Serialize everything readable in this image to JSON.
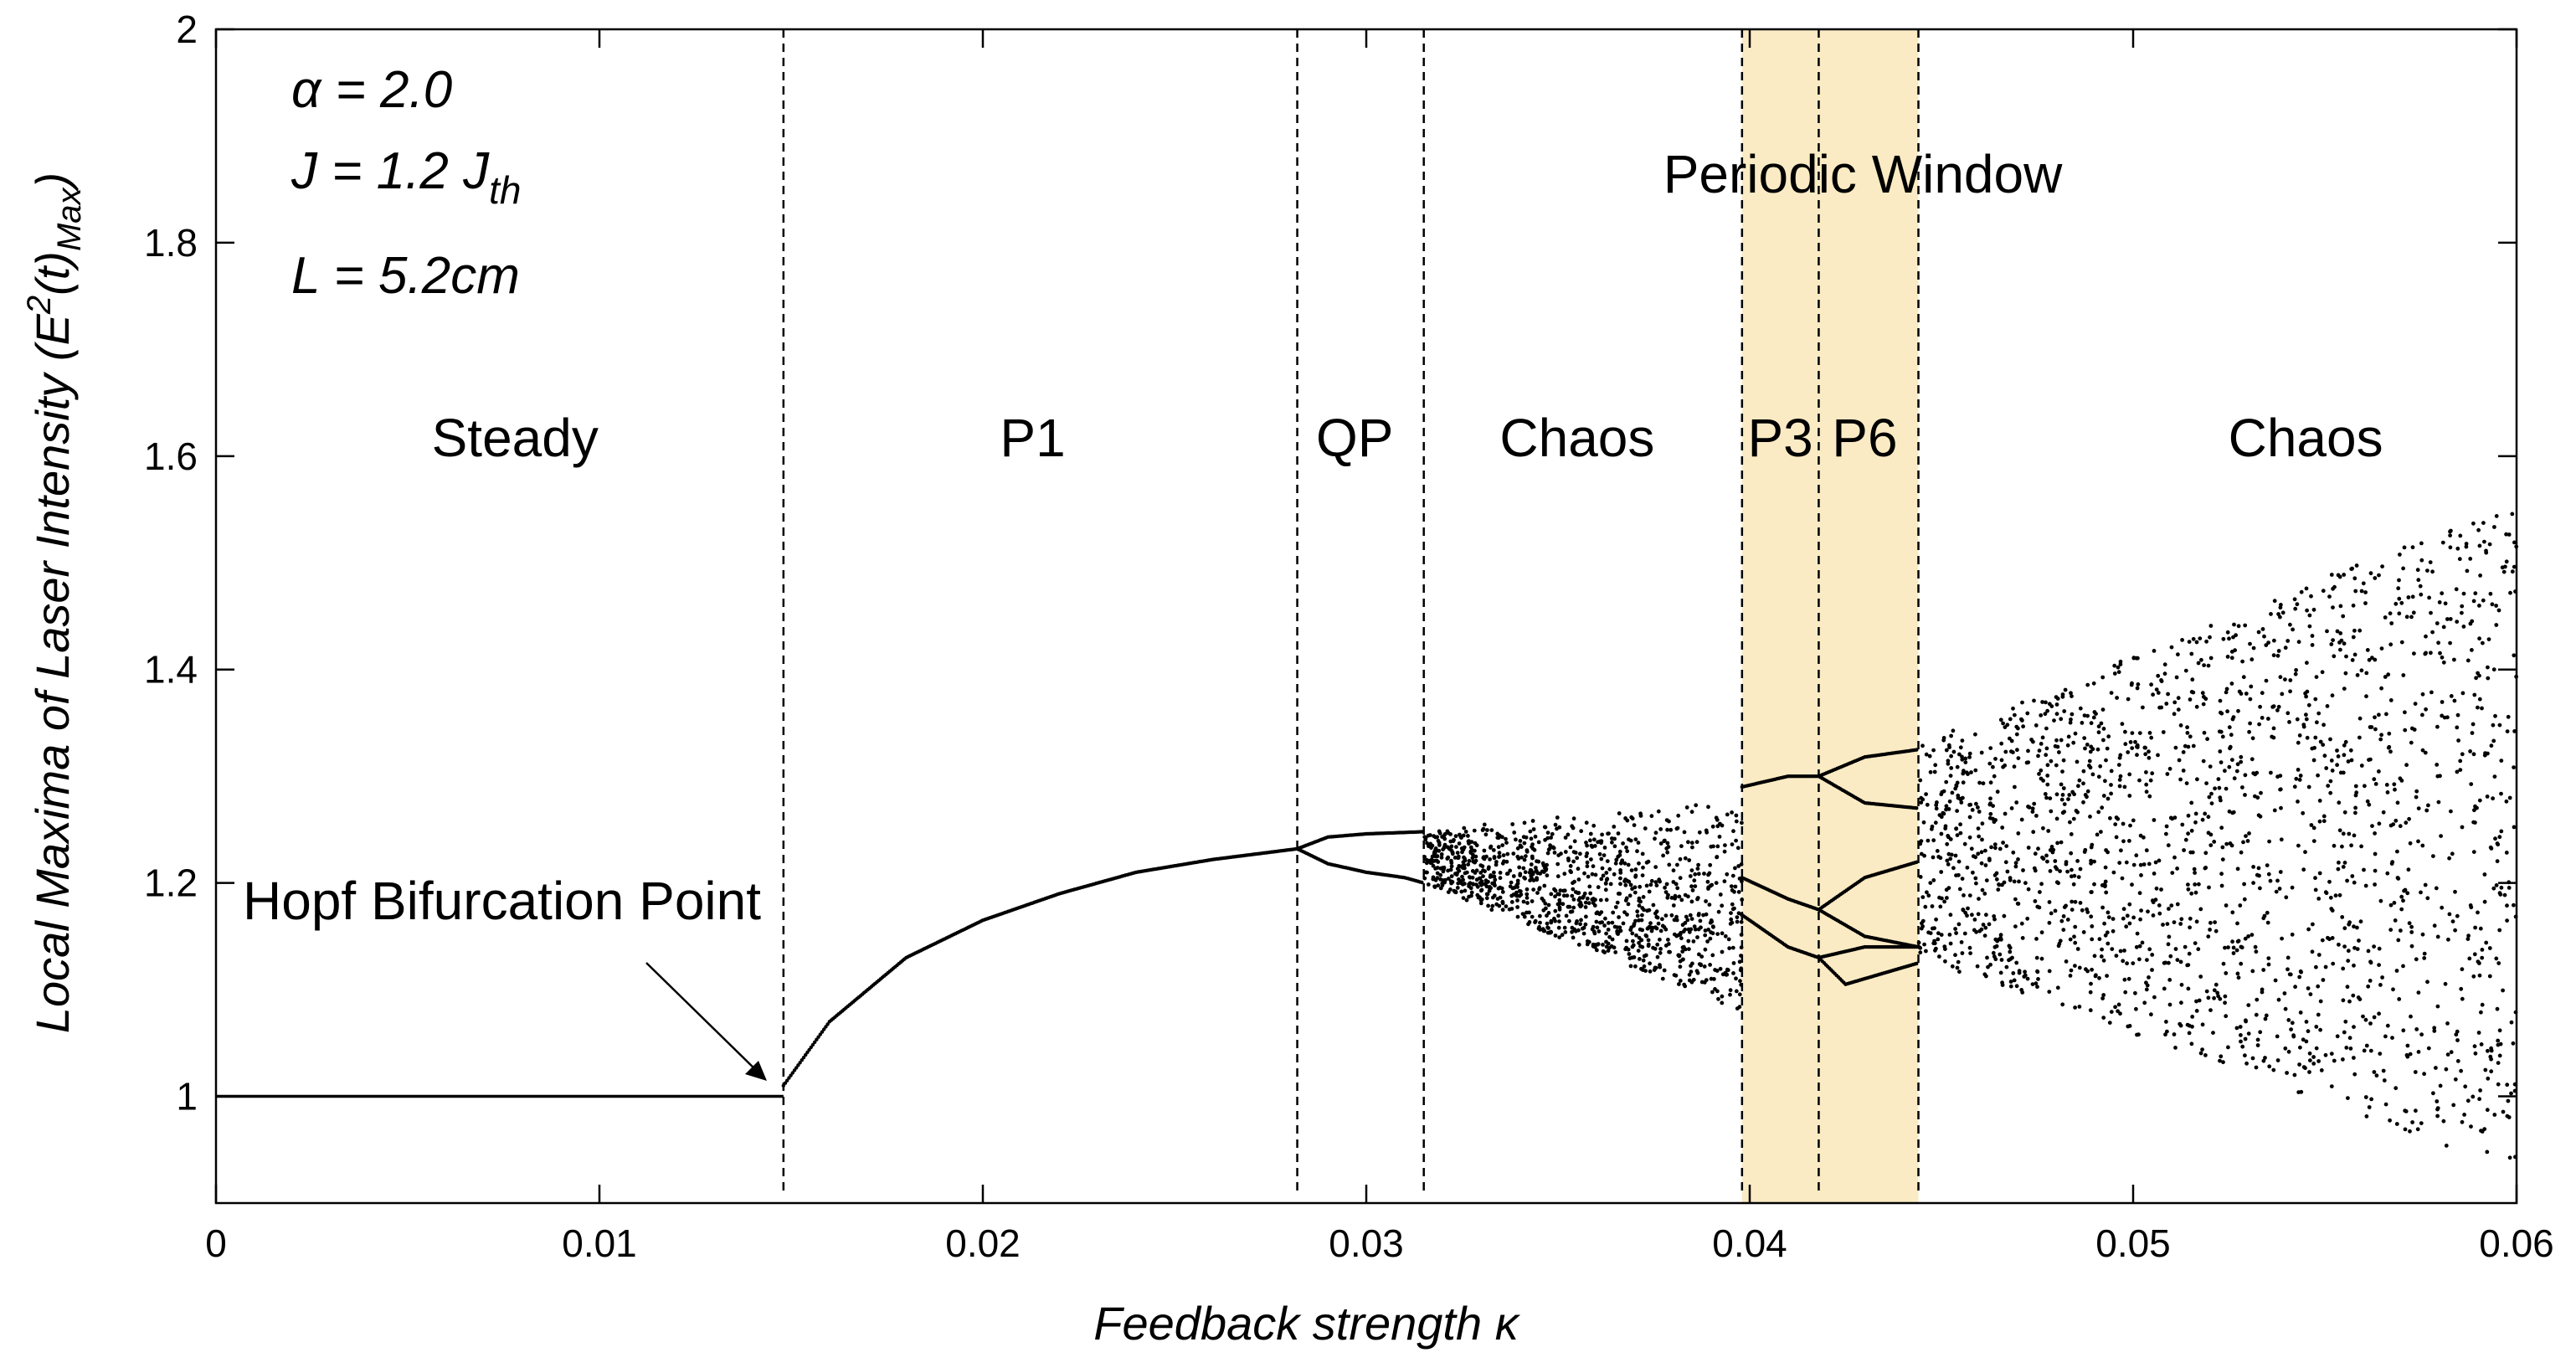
{
  "chart_data": {
    "type": "scatter",
    "subtype": "bifurcation-diagram",
    "xlabel": "Feedback strength κ",
    "ylabel": "Local Maxima of Laser Intensity (E²(t)Max)",
    "ylabel_parts": {
      "main": "Local Maxima of Laser Intensity (E",
      "sup": "2",
      "mid": "(t)",
      "sub": "Max",
      "end": ")"
    },
    "xlim": [
      0,
      0.06
    ],
    "ylim": [
      0.9,
      2.0
    ],
    "xticks": [
      0,
      0.01,
      0.02,
      0.03,
      0.04,
      0.05,
      0.06
    ],
    "xtick_labels": [
      "0",
      "0.01",
      "0.02",
      "0.03",
      "0.04",
      "0.05",
      "0.06"
    ],
    "yticks": [
      1,
      1.2,
      1.4,
      1.6,
      1.8,
      2
    ],
    "ytick_labels": [
      "1",
      "1.2",
      "1.4",
      "1.6",
      "1.8",
      "2"
    ],
    "grid": false,
    "parameters": [
      {
        "text": "α = 2.0"
      },
      {
        "text": "J = 1.2 J",
        "sub": "th"
      },
      {
        "text": "L = 5.2cm"
      }
    ],
    "boundaries": [
      0.0148,
      0.0282,
      0.0315,
      0.0398,
      0.0418,
      0.0444
    ],
    "highlight": {
      "x_range": [
        0.0398,
        0.0444
      ],
      "color": "#fbebc4",
      "label": "Periodic Window"
    },
    "regions": [
      {
        "label": "Steady",
        "x": 0.0078
      },
      {
        "label": "P1",
        "x": 0.0213
      },
      {
        "label": "QP",
        "x": 0.0297
      },
      {
        "label": "Chaos",
        "x": 0.0355
      },
      {
        "label": "P3",
        "x": 0.0408
      },
      {
        "label": "P6",
        "x": 0.043
      },
      {
        "label": "Chaos",
        "x": 0.0545
      }
    ],
    "annotation": {
      "text": "Hopf Bifurcation Point",
      "x": 0.0148,
      "y": 1.0
    },
    "series": [
      {
        "name": "steady state",
        "x_range": [
          0,
          0.0148
        ],
        "y": 1.0
      },
      {
        "name": "P1 branch",
        "points": [
          [
            0.0148,
            1.01
          ],
          [
            0.016,
            1.07
          ],
          [
            0.018,
            1.13
          ],
          [
            0.02,
            1.165
          ],
          [
            0.022,
            1.19
          ],
          [
            0.024,
            1.21
          ],
          [
            0.026,
            1.222
          ],
          [
            0.0282,
            1.232
          ]
        ]
      },
      {
        "name": "QP upper",
        "points": [
          [
            0.0282,
            1.232
          ],
          [
            0.029,
            1.243
          ],
          [
            0.03,
            1.246
          ],
          [
            0.0315,
            1.248
          ]
        ]
      },
      {
        "name": "QP lower",
        "points": [
          [
            0.0282,
            1.232
          ],
          [
            0.029,
            1.218
          ],
          [
            0.03,
            1.21
          ],
          [
            0.031,
            1.205
          ],
          [
            0.0315,
            1.2
          ]
        ]
      },
      {
        "name": "P3 upper",
        "points": [
          [
            0.0398,
            1.29
          ],
          [
            0.041,
            1.3
          ],
          [
            0.0418,
            1.3
          ]
        ]
      },
      {
        "name": "P3 middle",
        "points": [
          [
            0.0398,
            1.205
          ],
          [
            0.041,
            1.185
          ],
          [
            0.0418,
            1.175
          ]
        ]
      },
      {
        "name": "P3 lower",
        "points": [
          [
            0.0398,
            1.17
          ],
          [
            0.041,
            1.14
          ],
          [
            0.0418,
            1.13
          ]
        ]
      },
      {
        "name": "P6 branches",
        "points": [
          [
            0.0418,
            1.3
          ],
          [
            0.043,
            1.318
          ],
          [
            0.0444,
            1.325
          ]
        ]
      },
      {
        "name": "P6 branch 2",
        "points": [
          [
            0.0418,
            1.3
          ],
          [
            0.043,
            1.275
          ],
          [
            0.0444,
            1.27
          ]
        ]
      },
      {
        "name": "P6 branch 3",
        "points": [
          [
            0.0418,
            1.175
          ],
          [
            0.043,
            1.205
          ],
          [
            0.0444,
            1.22
          ]
        ]
      },
      {
        "name": "P6 branch 4",
        "points": [
          [
            0.0418,
            1.175
          ],
          [
            0.043,
            1.15
          ],
          [
            0.0444,
            1.14
          ]
        ]
      },
      {
        "name": "P6 branch 5",
        "points": [
          [
            0.0418,
            1.13
          ],
          [
            0.043,
            1.14
          ],
          [
            0.0444,
            1.14
          ]
        ]
      },
      {
        "name": "P6 branch 6",
        "points": [
          [
            0.0418,
            1.13
          ],
          [
            0.0425,
            1.105
          ],
          [
            0.0444,
            1.125
          ]
        ]
      }
    ],
    "chaos_regions": [
      {
        "x_range": [
          0.0315,
          0.0398
        ],
        "y_top": [
          1.25,
          1.28
        ],
        "y_bottom": [
          1.2,
          1.08
        ],
        "density": 1100
      },
      {
        "x_range": [
          0.0444,
          0.06
        ],
        "y_top": [
          1.33,
          1.56
        ],
        "y_bottom": [
          1.13,
          0.93
        ],
        "density": 1900
      }
    ]
  }
}
